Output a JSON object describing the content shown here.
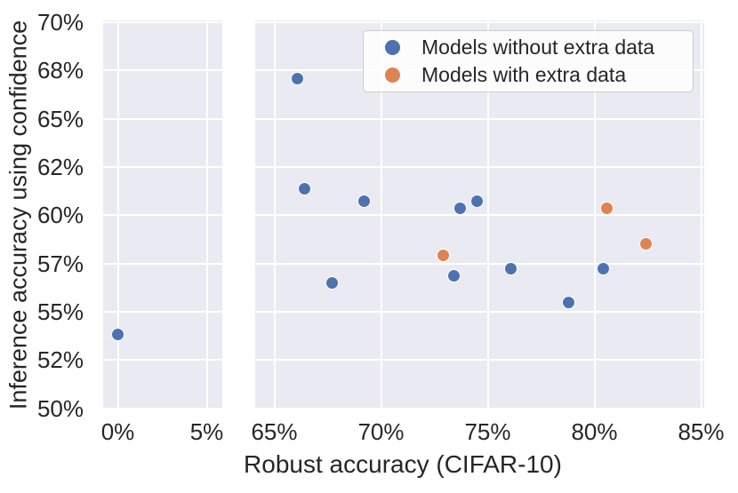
{
  "styles": {
    "panel_background": "#eaeaf2",
    "gridline_color": "#ffffff",
    "text_color": "#262626",
    "legend_border": "#cccccc",
    "blue": "#4c72b0",
    "orange": "#dd8452"
  },
  "chart_data": {
    "type": "scatter",
    "title": "",
    "xlabel": "Robust accuracy (CIFAR-10)",
    "ylabel": "Inference accuracy using confidence",
    "grid": true,
    "legend_position": "upper right",
    "y_axis": {
      "ticks": [
        50,
        52,
        55,
        57,
        60,
        62,
        65,
        68,
        70
      ],
      "tick_labels": [
        "50%",
        "52%",
        "55%",
        "57%",
        "60%",
        "62%",
        "65%",
        "68%",
        "70%"
      ],
      "note": "tick values evenly spaced on axis"
    },
    "x_axis": {
      "broken": true,
      "panels": [
        {
          "ticks": [
            0,
            5
          ],
          "tick_labels": [
            "0%",
            "5%"
          ],
          "xlim": [
            -0.85,
            5.85
          ]
        },
        {
          "ticks": [
            65,
            70,
            75,
            80,
            85
          ],
          "tick_labels": [
            "65%",
            "70%",
            "75%",
            "80%",
            "85%"
          ],
          "xlim": [
            64.1,
            85.05
          ]
        }
      ]
    },
    "series": [
      {
        "name": "Models without extra data",
        "color": "#4c72b0",
        "points": [
          [
            0.0,
            53.6
          ],
          [
            66.1,
            67.5
          ],
          [
            66.4,
            61.1
          ],
          [
            67.7,
            56.2
          ],
          [
            69.2,
            60.6
          ],
          [
            73.4,
            56.5
          ],
          [
            73.7,
            60.3
          ],
          [
            74.5,
            60.6
          ],
          [
            76.1,
            56.8
          ],
          [
            78.8,
            55.4
          ],
          [
            80.4,
            56.8
          ]
        ]
      },
      {
        "name": "Models with extra data",
        "color": "#dd8452",
        "points": [
          [
            72.9,
            57.5
          ],
          [
            80.6,
            60.3
          ],
          [
            82.4,
            58.2
          ]
        ]
      }
    ]
  }
}
